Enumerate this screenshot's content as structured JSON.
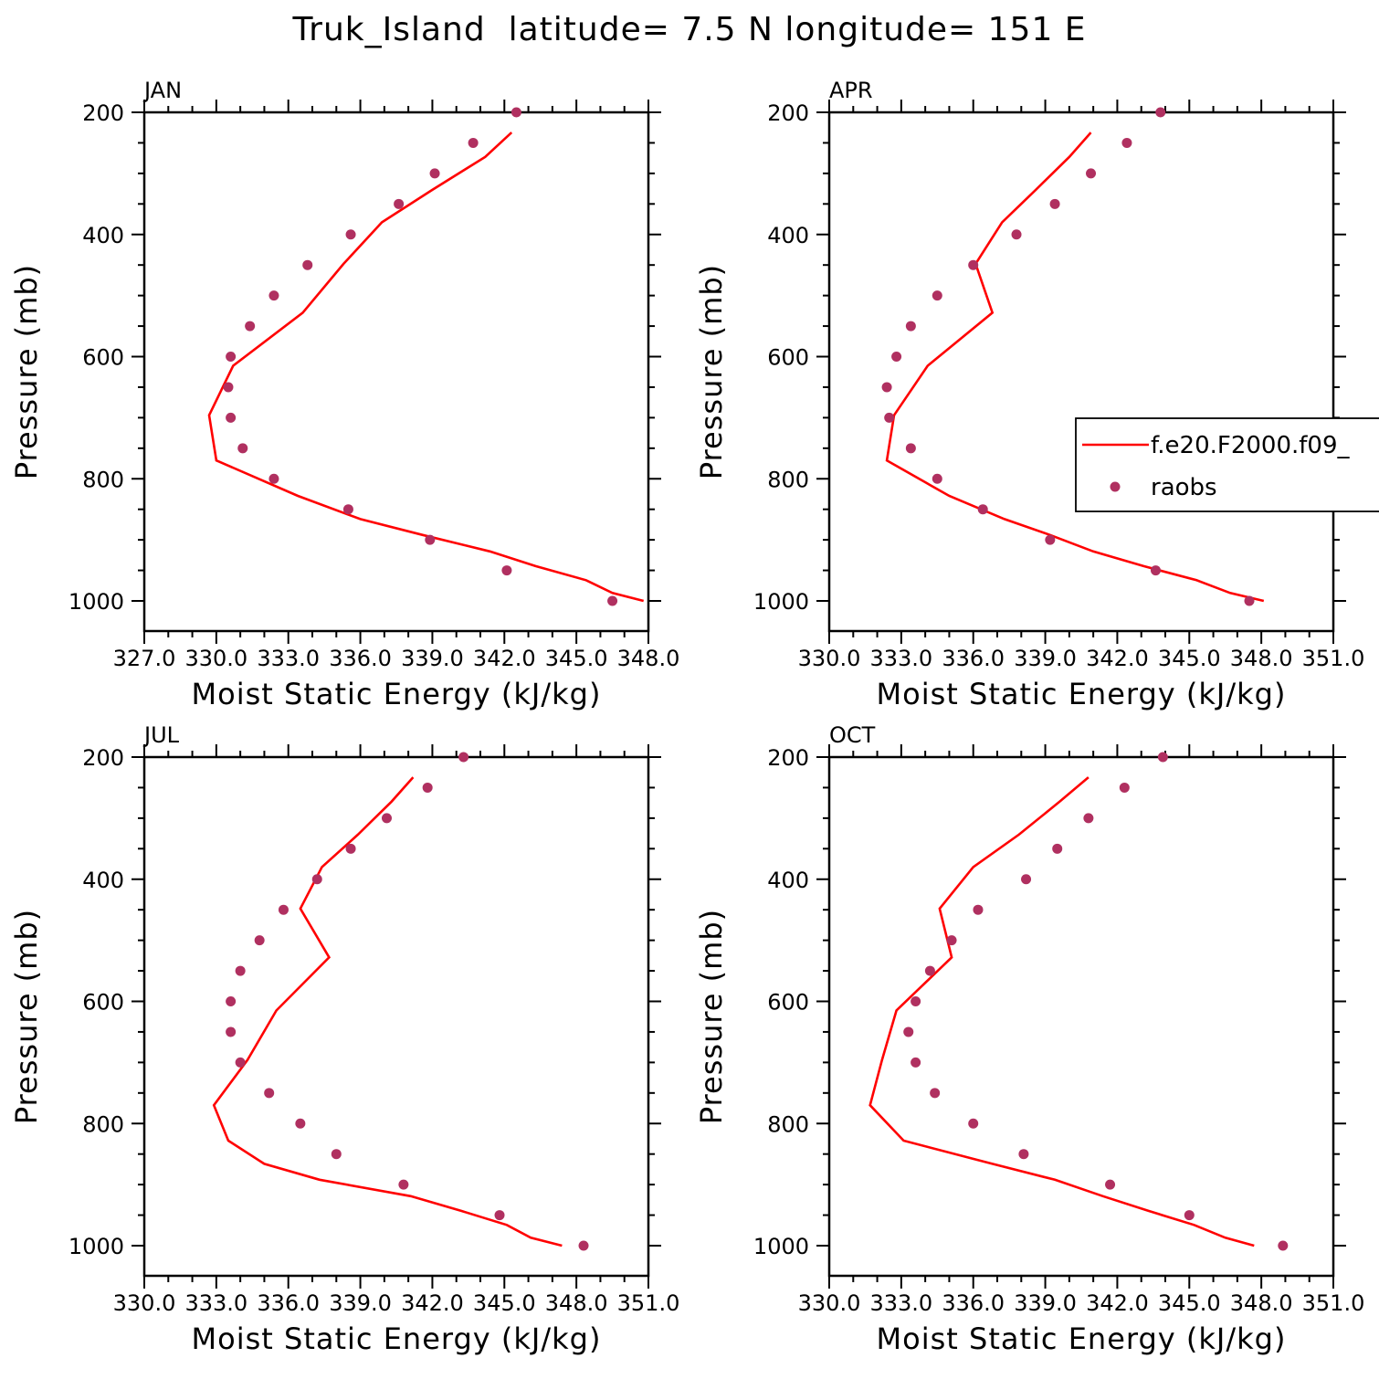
{
  "title": "Truk_Island  latitude= 7.5 N longitude= 151 E",
  "legend": {
    "model_label": "f.e20.F2000.f09_",
    "obs_label": "raobs"
  },
  "colors": {
    "model": "#ff0000",
    "obs": "#b03060",
    "axis": "#000000"
  },
  "chart_data": [
    {
      "type": "line",
      "panel": "JAN",
      "xlabel": "Moist Static Energy (kJ/kg)",
      "ylabel": "Pressure (mb)",
      "xlim": [
        327,
        348
      ],
      "ylim": [
        1000,
        200
      ],
      "xticks": [
        327,
        330,
        333,
        336,
        339,
        342,
        345,
        348
      ],
      "xtick_labels": [
        "327.0",
        "330.0",
        "333.0",
        "336.0",
        "339.0",
        "342.0",
        "345.0",
        "348.0"
      ],
      "yticks": [
        200,
        400,
        600,
        800,
        1000
      ],
      "ytick_labels": [
        "200",
        "400",
        "600",
        "800",
        "1000"
      ],
      "grid": false,
      "series": [
        {
          "name": "f.e20.F2000.f09_",
          "kind": "line",
          "x": [
            347.8,
            346.5,
            345.4,
            343.3,
            341.4,
            338.6,
            336.0,
            333.4,
            330.0,
            329.7,
            330.7,
            333.6,
            335.3,
            336.9,
            339.0,
            341.2,
            342.3
          ],
          "y": [
            1000,
            987,
            966,
            943,
            919,
            892,
            866,
            828,
            770,
            696,
            615,
            528,
            448,
            380,
            327,
            273,
            233
          ]
        },
        {
          "name": "raobs",
          "kind": "scatter",
          "x": [
            346.5,
            342.1,
            338.9,
            335.5,
            332.4,
            331.1,
            330.6,
            330.5,
            330.6,
            331.4,
            332.4,
            333.8,
            335.6,
            337.6,
            339.1,
            340.7,
            342.5
          ],
          "y": [
            1000,
            950,
            900,
            850,
            800,
            750,
            700,
            650,
            600,
            550,
            500,
            450,
            400,
            350,
            300,
            250,
            200
          ]
        }
      ]
    },
    {
      "type": "line",
      "panel": "APR",
      "xlabel": "Moist Static Energy (kJ/kg)",
      "ylabel": "Pressure (mb)",
      "xlim": [
        330,
        351
      ],
      "ylim": [
        1000,
        200
      ],
      "xticks": [
        330,
        333,
        336,
        339,
        342,
        345,
        348,
        351
      ],
      "xtick_labels": [
        "330.0",
        "333.0",
        "336.0",
        "339.0",
        "342.0",
        "345.0",
        "348.0",
        "351.0"
      ],
      "yticks": [
        200,
        400,
        600,
        800,
        1000
      ],
      "ytick_labels": [
        "200",
        "400",
        "600",
        "800",
        "1000"
      ],
      "grid": false,
      "series": [
        {
          "name": "f.e20.F2000.f09_",
          "kind": "line",
          "x": [
            348.1,
            346.7,
            345.3,
            343.1,
            341.0,
            339.2,
            337.3,
            335.0,
            332.4,
            332.7,
            334.1,
            336.8,
            336.1,
            337.2,
            338.6,
            340.0,
            340.9
          ],
          "y": [
            1000,
            987,
            966,
            943,
            919,
            892,
            866,
            828,
            770,
            696,
            615,
            528,
            448,
            380,
            327,
            273,
            233
          ]
        },
        {
          "name": "raobs",
          "kind": "scatter",
          "x": [
            347.5,
            343.6,
            339.2,
            336.4,
            334.5,
            333.4,
            332.5,
            332.4,
            332.8,
            333.4,
            334.5,
            336.0,
            337.8,
            339.4,
            340.9,
            342.4,
            343.8
          ],
          "y": [
            1000,
            950,
            900,
            850,
            800,
            750,
            700,
            650,
            600,
            550,
            500,
            450,
            400,
            350,
            300,
            250,
            200
          ]
        }
      ]
    },
    {
      "type": "line",
      "panel": "JUL",
      "xlabel": "Moist Static Energy (kJ/kg)",
      "ylabel": "Pressure (mb)",
      "xlim": [
        330,
        351
      ],
      "ylim": [
        1000,
        200
      ],
      "xticks": [
        330,
        333,
        336,
        339,
        342,
        345,
        348,
        351
      ],
      "xtick_labels": [
        "330.0",
        "333.0",
        "336.0",
        "339.0",
        "342.0",
        "345.0",
        "348.0",
        "351.0"
      ],
      "yticks": [
        200,
        400,
        600,
        800,
        1000
      ],
      "ytick_labels": [
        "200",
        "400",
        "600",
        "800",
        "1000"
      ],
      "grid": false,
      "series": [
        {
          "name": "f.e20.F2000.f09_",
          "kind": "line",
          "x": [
            347.4,
            346.1,
            345.1,
            343.2,
            341.1,
            337.3,
            335.0,
            333.5,
            332.9,
            334.3,
            335.5,
            337.7,
            336.5,
            337.4,
            338.9,
            340.3,
            341.2
          ],
          "y": [
            1000,
            987,
            966,
            943,
            919,
            892,
            866,
            828,
            770,
            696,
            615,
            528,
            448,
            380,
            327,
            273,
            233
          ]
        },
        {
          "name": "raobs",
          "kind": "scatter",
          "x": [
            348.3,
            344.8,
            340.8,
            338.0,
            336.5,
            335.2,
            334.0,
            333.6,
            333.6,
            334.0,
            334.8,
            335.8,
            337.2,
            338.6,
            340.1,
            341.8,
            343.3
          ],
          "y": [
            1000,
            950,
            900,
            850,
            800,
            750,
            700,
            650,
            600,
            550,
            500,
            450,
            400,
            350,
            300,
            250,
            200
          ]
        }
      ]
    },
    {
      "type": "line",
      "panel": "OCT",
      "xlabel": "Moist Static Energy (kJ/kg)",
      "ylabel": "Pressure (mb)",
      "xlim": [
        330,
        351
      ],
      "ylim": [
        1000,
        200
      ],
      "xticks": [
        330,
        333,
        336,
        339,
        342,
        345,
        348,
        351
      ],
      "xtick_labels": [
        "330.0",
        "333.0",
        "336.0",
        "339.0",
        "342.0",
        "345.0",
        "348.0",
        "351.0"
      ],
      "yticks": [
        200,
        400,
        600,
        800,
        1000
      ],
      "ytick_labels": [
        "200",
        "400",
        "600",
        "800",
        "1000"
      ],
      "grid": false,
      "series": [
        {
          "name": "f.e20.F2000.f09_",
          "kind": "line",
          "x": [
            347.7,
            346.5,
            345.2,
            343.3,
            341.4,
            339.4,
            336.8,
            333.1,
            331.7,
            332.2,
            332.8,
            335.1,
            334.6,
            336.0,
            337.9,
            339.6,
            340.8
          ],
          "y": [
            1000,
            987,
            966,
            943,
            919,
            892,
            866,
            828,
            770,
            696,
            615,
            528,
            448,
            380,
            327,
            273,
            233
          ]
        },
        {
          "name": "raobs",
          "kind": "scatter",
          "x": [
            348.9,
            345.0,
            341.7,
            338.1,
            336.0,
            334.4,
            333.6,
            333.3,
            333.6,
            334.2,
            335.1,
            336.2,
            338.2,
            339.5,
            340.8,
            342.3,
            343.9
          ],
          "y": [
            1000,
            950,
            900,
            850,
            800,
            750,
            700,
            650,
            600,
            550,
            500,
            450,
            400,
            350,
            300,
            250,
            200
          ]
        }
      ]
    }
  ]
}
